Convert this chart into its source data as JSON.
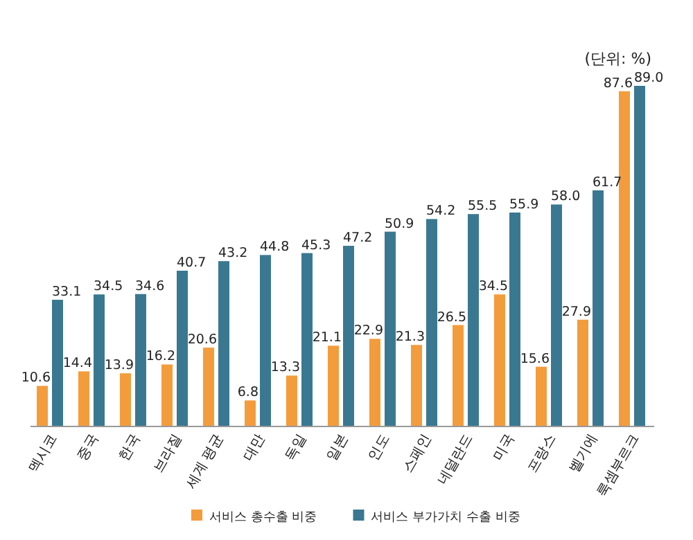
{
  "chart_data": {
    "type": "bar",
    "categories": [
      "멕시코",
      "중국",
      "한국",
      "브라질",
      "세계 평균",
      "대만",
      "독일",
      "일본",
      "인도",
      "스페인",
      "네덜란드",
      "미국",
      "프랑스",
      "벨기에",
      "룩셈부르크"
    ],
    "series": [
      {
        "name": "서비스 총수출 비중",
        "color": "#f39c3c",
        "values": [
          10.6,
          14.4,
          13.9,
          16.2,
          20.6,
          6.8,
          13.3,
          21.1,
          22.9,
          21.3,
          26.5,
          34.5,
          15.6,
          27.9,
          87.6
        ]
      },
      {
        "name": "서비스 부가가치 수출 비중",
        "color": "#3a7891",
        "values": [
          33.1,
          34.5,
          34.6,
          40.7,
          43.2,
          44.8,
          45.3,
          47.2,
          50.9,
          54.2,
          55.5,
          55.9,
          58.0,
          61.7,
          89.0
        ],
        "value_labels": [
          "33.1",
          "34.5",
          "34.6",
          "40.7",
          "43.2",
          "44.8",
          "45.3",
          "47.2",
          "50.9",
          "54.2",
          "55.5",
          "55.9",
          "58.0",
          "61.7",
          "89.0"
        ]
      }
    ],
    "data_labels": true,
    "relative": false,
    "legend": "bottom",
    "grid": false,
    "annotations": [
      "(단위: %)"
    ]
  }
}
